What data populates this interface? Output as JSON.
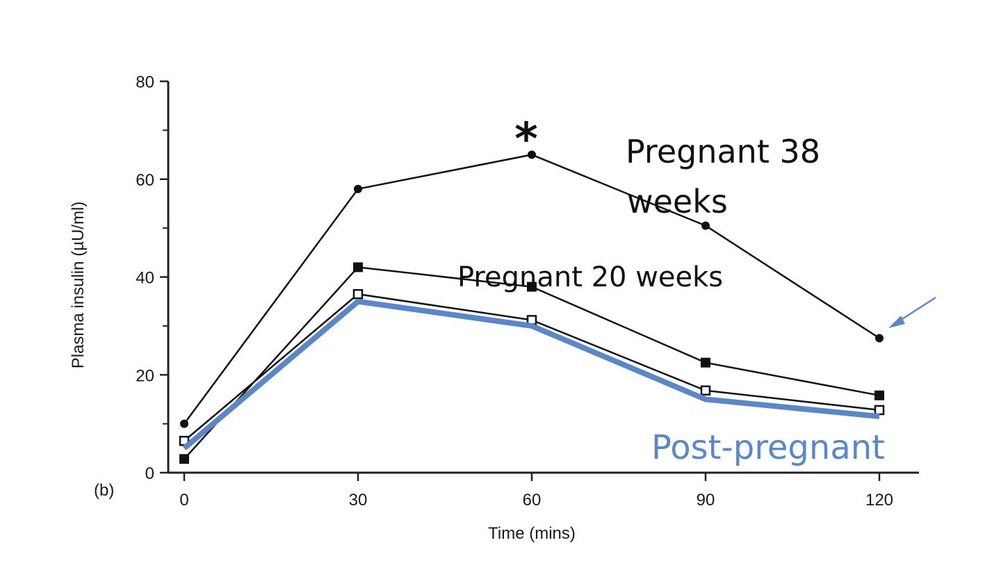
{
  "chart_data": {
    "type": "line",
    "panel_label": "(b)",
    "xlabel": "Time (mins)",
    "ylabel": "Plasma insulin (µU/ml)",
    "xlim": [
      0,
      120
    ],
    "ylim": [
      0,
      80
    ],
    "x_ticks": [
      0,
      30,
      60,
      90,
      120
    ],
    "y_ticks": [
      0,
      20,
      40,
      60,
      80
    ],
    "y_minor_ticks": [
      10,
      30,
      50,
      70
    ],
    "grid": false,
    "x": [
      0,
      30,
      60,
      90,
      120
    ],
    "series": [
      {
        "name": "Pregnant 38 weeks",
        "marker": "filled-circle",
        "color": "#111111",
        "values": [
          10,
          58,
          65,
          50.5,
          27.5
        ]
      },
      {
        "name": "Pregnant 20 weeks",
        "marker": "filled-square",
        "color": "#111111",
        "values": [
          2.8,
          42,
          38,
          22.5,
          15.8
        ]
      },
      {
        "name": "Post-pregnant",
        "marker": "open-square",
        "color": "#111111",
        "values": [
          6.5,
          36.5,
          31.2,
          16.8,
          12.8
        ]
      },
      {
        "name": "Post-pregnant",
        "marker": "none",
        "color": "#5b87c7",
        "values": [
          5,
          35,
          30,
          15,
          11.5
        ],
        "style": "highlight-overlay"
      }
    ],
    "annotations": {
      "asterisk": "*",
      "label_38_line1": "Pregnant 38",
      "label_38_line2": "weeks",
      "label_20": "Pregnant 20 weeks",
      "label_post": "Post-pregnant",
      "post_color": "#5b87c7",
      "arrow_color": "#5b87c7"
    }
  }
}
